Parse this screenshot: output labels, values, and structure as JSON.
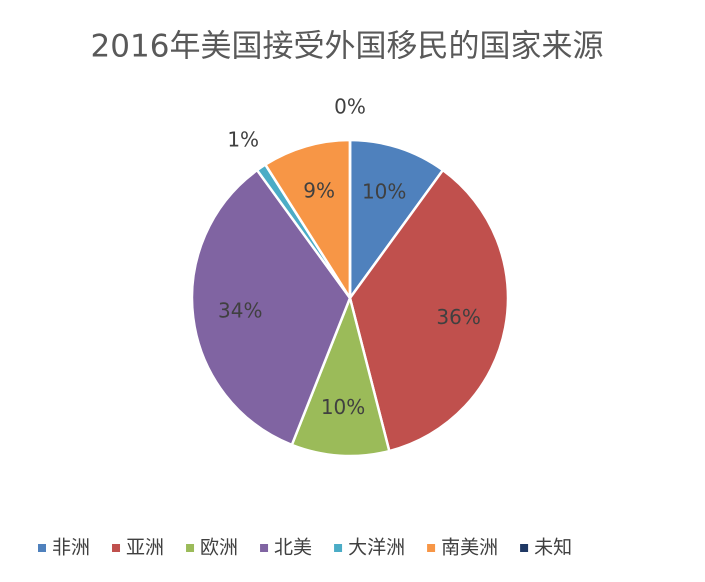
{
  "chart_data": {
    "type": "pie",
    "title": "2016年美国接受外国移民的国家来源",
    "categories": [
      "非洲",
      "亚洲",
      "欧洲",
      "北美",
      "大洋洲",
      "南美洲",
      "未知"
    ],
    "values": [
      10,
      36,
      10,
      34,
      1,
      9,
      0
    ],
    "value_labels": [
      "10%",
      "36%",
      "10%",
      "34%",
      "1%",
      "9%",
      "0%"
    ],
    "colors": [
      "#4f81bd",
      "#c0504d",
      "#9bbb59",
      "#8064a2",
      "#4bacc6",
      "#f79646",
      "#1f3864"
    ],
    "legend": "bottom"
  }
}
